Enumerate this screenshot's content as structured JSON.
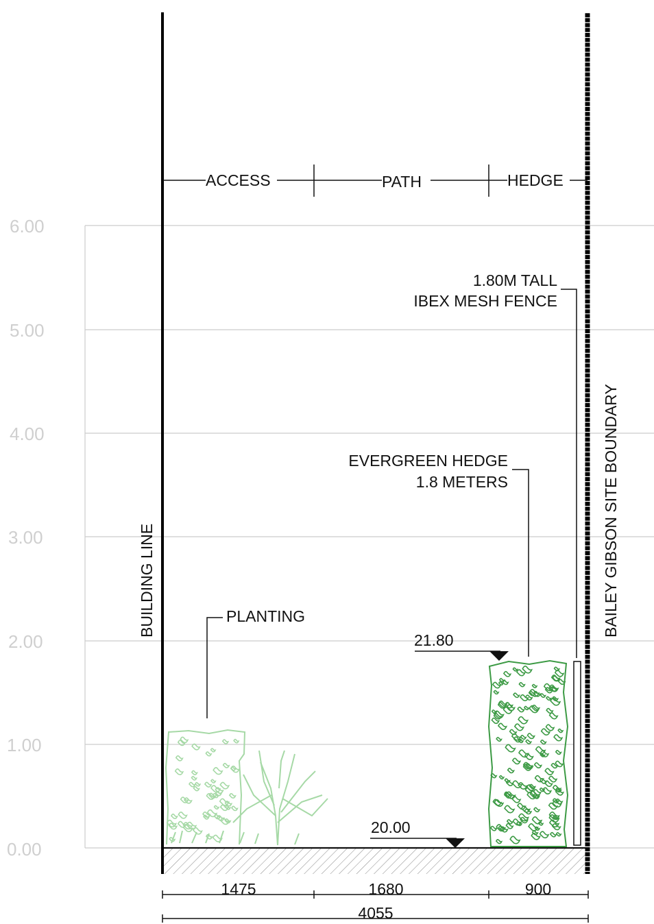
{
  "level_ticks": [
    "6.00",
    "5.00",
    "4.00",
    "3.00",
    "2.00",
    "1.00",
    "0.00"
  ],
  "zones": [
    "ACCESS",
    "PATH",
    "HEDGE"
  ],
  "labels": {
    "building_line": "BUILDING LINE",
    "site_boundary": "BAILEY GIBSON SITE BOUNDARY",
    "fence_line1": "1.80M TALL",
    "fence_line2": "IBEX MESH FENCE",
    "hedge_line1": "EVERGREEN HEDGE",
    "hedge_line2": "1.8 METERS",
    "planting": "PLANTING"
  },
  "spot_levels": {
    "top_of_hedge": "21.80",
    "ground": "20.00"
  },
  "dimensions": {
    "access": "1475",
    "path": "1680",
    "hedge": "900",
    "total": "4055"
  },
  "colors": {
    "planting": "#a6d9a6",
    "hedge": "#3c9a44",
    "grid": "#cccccc",
    "ink": "#111111"
  }
}
